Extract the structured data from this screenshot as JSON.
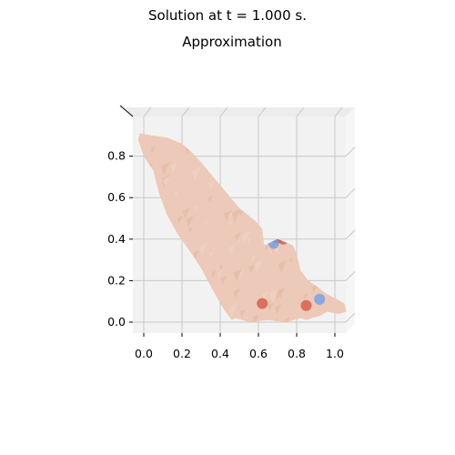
{
  "figure": {
    "suptitle": "Solution at t = 1.000 s.",
    "title": "Approximation"
  },
  "chart_data": {
    "type": "surface",
    "title": "Approximation",
    "suptitle": "Solution at t = 1.000 s.",
    "xlabel": "",
    "ylabel": "",
    "xlim": [
      -0.07,
      1.08
    ],
    "ylim": [
      -0.06,
      0.97
    ],
    "x_ticks": [
      "0.0",
      "0.2",
      "0.4",
      "0.6",
      "0.8",
      "1.0"
    ],
    "y_ticks": [
      "0.0",
      "0.2",
      "0.4",
      "0.6",
      "0.8"
    ],
    "grid": true,
    "view": "3D axes viewed from above (x-y plane)",
    "colormap": "coolwarm",
    "colors": {
      "base": "#ecc9b8",
      "warm": "#d8604b",
      "hot": "#c8322f",
      "cool": "#7aa0e6",
      "pane": "#f2f2f2",
      "grid": "#c8c8c8"
    },
    "domain_outline": [
      [
        -0.02,
        0.91
      ],
      [
        0.04,
        0.9
      ],
      [
        0.12,
        0.89
      ],
      [
        0.2,
        0.86
      ],
      [
        0.25,
        0.82
      ],
      [
        0.3,
        0.77
      ],
      [
        0.4,
        0.66
      ],
      [
        0.5,
        0.55
      ],
      [
        0.58,
        0.49
      ],
      [
        0.62,
        0.45
      ],
      [
        0.63,
        0.37
      ],
      [
        0.7,
        0.4
      ],
      [
        0.78,
        0.37
      ],
      [
        0.8,
        0.33
      ],
      [
        0.82,
        0.25
      ],
      [
        0.86,
        0.2
      ],
      [
        0.91,
        0.17
      ],
      [
        0.95,
        0.14
      ],
      [
        1.01,
        0.11
      ],
      [
        1.05,
        0.09
      ],
      [
        1.06,
        0.05
      ],
      [
        1.02,
        0.04
      ],
      [
        0.96,
        0.05
      ],
      [
        0.92,
        0.03
      ],
      [
        0.88,
        0.02
      ],
      [
        0.85,
        0.01
      ],
      [
        0.82,
        0.02
      ],
      [
        0.75,
        0.0
      ],
      [
        0.65,
        0.01
      ],
      [
        0.55,
        0.0
      ],
      [
        0.48,
        0.02
      ],
      [
        0.46,
        0.01
      ],
      [
        0.42,
        0.06
      ],
      [
        0.37,
        0.14
      ],
      [
        0.3,
        0.26
      ],
      [
        0.25,
        0.33
      ],
      [
        0.18,
        0.42
      ],
      [
        0.12,
        0.52
      ],
      [
        0.08,
        0.62
      ],
      [
        0.05,
        0.73
      ],
      [
        0.0,
        0.8
      ],
      [
        -0.03,
        0.88
      ]
    ],
    "hotspots": [
      {
        "x": 0.7,
        "y": 0.42,
        "level": "hot"
      },
      {
        "x": 0.73,
        "y": 0.4,
        "level": "warm"
      },
      {
        "x": 0.68,
        "y": 0.38,
        "level": "cool"
      },
      {
        "x": 0.92,
        "y": 0.11,
        "level": "cool"
      },
      {
        "x": 0.85,
        "y": 0.08,
        "level": "warm"
      },
      {
        "x": 0.62,
        "y": 0.09,
        "level": "warm"
      }
    ]
  }
}
